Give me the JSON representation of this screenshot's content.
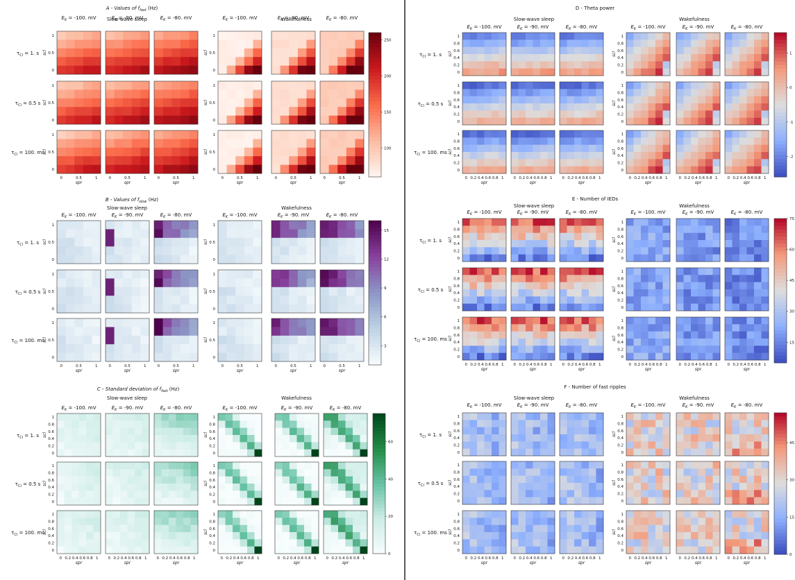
{
  "figure": {
    "labels": {
      "ek": [
        "E_K = -100. mV",
        "E_K = -90. mV",
        "E_K = -80. mV"
      ],
      "conditions": [
        "Slow-wave sleep",
        "Wakefulness"
      ],
      "tau_rows": [
        "τ_Cl = 1. s",
        "τ_Cl = 0.5 s",
        "τ_Cl = 100. ms"
      ],
      "xlabel": "spr",
      "ylabel": "scl"
    }
  },
  "chart_data": [
    {
      "panel": "A",
      "type": "heatmap",
      "title": "A - Values of f_fast (Hz)",
      "colormap": "Reds",
      "colorbar": {
        "ticks": [
          100,
          150,
          200,
          250
        ],
        "range": [
          60,
          260
        ]
      },
      "x_ticks": [
        "0",
        "0.5",
        "1"
      ],
      "y_ticks": [
        "0",
        "0.5",
        "1"
      ],
      "grid_size": [
        5,
        5
      ]
    },
    {
      "panel": "B",
      "type": "heatmap",
      "title": "B - Values of f_slow (Hz)",
      "colormap": "BuPu",
      "colorbar": {
        "ticks": [
          3,
          6,
          9,
          12,
          15
        ],
        "range": [
          1,
          16
        ]
      },
      "x_ticks": [
        "0",
        "0.5",
        "1"
      ],
      "y_ticks": [
        "0",
        "0.5",
        "1"
      ],
      "grid_size": [
        5,
        5
      ]
    },
    {
      "panel": "C",
      "type": "heatmap",
      "title": "C - Standard deviation of f_fast (Hz)",
      "colormap": "BuGn",
      "colorbar": {
        "ticks": [
          0,
          20,
          40,
          60
        ],
        "range": [
          0,
          75
        ]
      },
      "x_ticks": [
        "0",
        "0.2",
        "0.4",
        "0.6",
        "0.8",
        "1"
      ],
      "y_ticks": [
        "0",
        "0.2",
        "0.4",
        "0.6",
        "0.8",
        "1"
      ],
      "grid_size": [
        6,
        6
      ]
    },
    {
      "panel": "D",
      "type": "heatmap",
      "title": "D - Theta power",
      "colormap": "coolwarm",
      "colorbar": {
        "ticks": [
          -2,
          -1,
          0,
          1
        ],
        "range": [
          -2.6,
          1.6
        ]
      },
      "x_ticks": [
        "0",
        "0.2",
        "0.4",
        "0.6",
        "0.8",
        "1"
      ],
      "y_ticks": [
        "0",
        "0.2",
        "0.4",
        "0.6",
        "0.8",
        "1"
      ],
      "grid_size": [
        6,
        6
      ]
    },
    {
      "panel": "E",
      "type": "heatmap",
      "title": "E - Number of IEDs",
      "colormap": "coolwarm",
      "colorbar": {
        "ticks": [
          15,
          30,
          45,
          60,
          75
        ],
        "range": [
          5,
          75
        ]
      },
      "x_ticks": [
        "0",
        "0.2",
        "0.4",
        "0.6",
        "0.8",
        "1"
      ],
      "y_ticks": [
        "0",
        "0.2",
        "0.4",
        "0.6",
        "0.8",
        "1"
      ],
      "grid_size": [
        6,
        6
      ]
    },
    {
      "panel": "F",
      "type": "heatmap",
      "title": "F - Number of fast ripples",
      "colormap": "coolwarm",
      "colorbar": {
        "ticks": [
          0,
          15,
          30,
          45
        ],
        "range": [
          0,
          57
        ]
      },
      "x_ticks": [
        "0",
        "0.2",
        "0.4",
        "0.6",
        "0.8",
        "1"
      ],
      "y_ticks": [
        "0",
        "0.2",
        "0.4",
        "0.6",
        "0.8",
        "1"
      ],
      "grid_size": [
        6,
        6
      ]
    }
  ]
}
